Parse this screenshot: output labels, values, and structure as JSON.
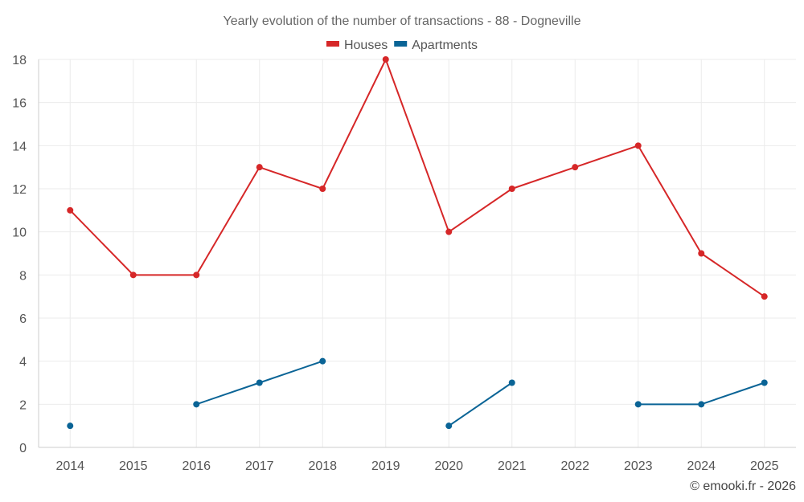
{
  "chart_data": {
    "type": "line",
    "title": "Yearly evolution of the number of transactions - 88 - Dogneville",
    "xlabel": "",
    "ylabel": "",
    "categories": [
      "2014",
      "2015",
      "2016",
      "2017",
      "2018",
      "2019",
      "2020",
      "2021",
      "2022",
      "2023",
      "2024",
      "2025"
    ],
    "ylim": [
      0,
      18
    ],
    "yticks": [
      0,
      2,
      4,
      6,
      8,
      10,
      12,
      14,
      16,
      18
    ],
    "grid": true,
    "legend_position": "top-center",
    "series": [
      {
        "name": "Houses",
        "color": "#d62728",
        "values": [
          11,
          8,
          8,
          13,
          12,
          18,
          10,
          12,
          13,
          14,
          9,
          7
        ]
      },
      {
        "name": "Apartments",
        "color": "#0a6496",
        "values": [
          1,
          null,
          2,
          3,
          4,
          null,
          1,
          3,
          null,
          2,
          2,
          3
        ]
      }
    ]
  },
  "credit": "© emooki.fr - 2026"
}
